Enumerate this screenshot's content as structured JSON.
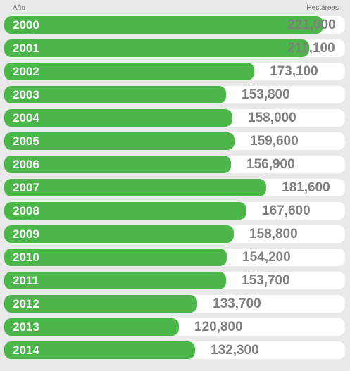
{
  "header": {
    "left_label": "Año",
    "right_label": "Hectáreas"
  },
  "colors": {
    "bar": "#4cb64a",
    "track": "#ffffff",
    "background": "#e9e9e9",
    "value_text": "#7f7f7f"
  },
  "chart_data": {
    "type": "bar",
    "orientation": "horizontal",
    "title": "",
    "xlabel": "Hectáreas",
    "ylabel": "Año",
    "xlim": [
      0,
      236000
    ],
    "categories": [
      "2000",
      "2001",
      "2002",
      "2003",
      "2004",
      "2005",
      "2006",
      "2007",
      "2008",
      "2009",
      "2010",
      "2011",
      "2012",
      "2013",
      "2014"
    ],
    "values": [
      221000,
      211100,
      173100,
      153800,
      158000,
      159600,
      156900,
      181600,
      167600,
      158800,
      154200,
      153700,
      133700,
      120800,
      132300
    ],
    "value_labels": [
      "221,000",
      "211,100",
      "173,100",
      "153,800",
      "158,000",
      "159,600",
      "156,900",
      "181,600",
      "167,600",
      "158,800",
      "154,200",
      "153,700",
      "133,700",
      "120,800",
      "132,300"
    ],
    "grid": false,
    "legend": "none"
  }
}
